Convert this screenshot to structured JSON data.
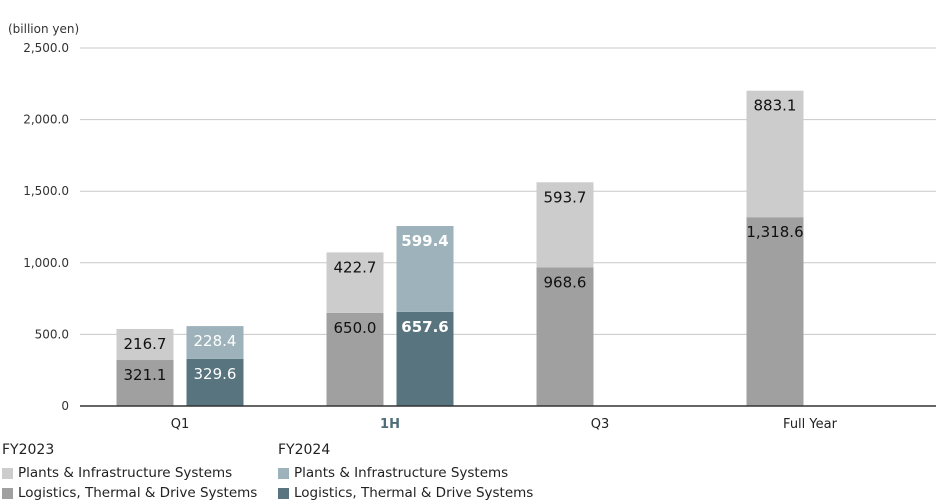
{
  "chart_data": {
    "type": "bar",
    "stacked": true,
    "unit_label": "(billion yen)",
    "categories": [
      "Q1",
      "1H",
      "Q3",
      "Full Year"
    ],
    "highlighted_category": "1H",
    "ylim": [
      0,
      2500
    ],
    "y_ticks": [
      "2,500.0",
      "2,000.0",
      "1,500.0",
      "1,000.0",
      "500.0",
      "0"
    ],
    "y_tick_values": [
      2500,
      2000,
      1500,
      1000,
      500,
      0
    ],
    "groups": [
      {
        "name": "FY2023",
        "series": [
          {
            "name": "Logistics, Thermal & Drive Systems",
            "color": "#a0a0a0",
            "values": [
              321.1,
              650.0,
              968.6,
              1318.6
            ],
            "labels": [
              "321.1",
              "650.0",
              "968.6",
              "1,318.6"
            ]
          },
          {
            "name": "Plants & Infrastructure Systems",
            "color": "#cccccc",
            "values": [
              216.7,
              422.7,
              593.7,
              883.1
            ],
            "labels": [
              "216.7",
              "422.7",
              "593.7",
              "883.1"
            ]
          }
        ]
      },
      {
        "name": "FY2024",
        "series": [
          {
            "name": "Logistics, Thermal & Drive Systems",
            "color": "#57747f",
            "values": [
              329.6,
              657.6,
              null,
              null
            ],
            "labels": [
              "329.6",
              "657.6",
              "",
              ""
            ]
          },
          {
            "name": "Plants & Infrastructure Systems",
            "color": "#9db2ba",
            "values": [
              228.4,
              599.4,
              null,
              null
            ],
            "labels": [
              "228.4",
              "599.4",
              "",
              ""
            ]
          }
        ]
      }
    ],
    "grid": true,
    "legend_position": "bottom-left"
  },
  "legend": {
    "fy2023": {
      "title": "FY2023",
      "items": [
        {
          "label": "Plants & Infrastructure Systems",
          "color": "#cccccc"
        },
        {
          "label": "Logistics, Thermal & Drive Systems",
          "color": "#a0a0a0"
        }
      ]
    },
    "fy2024": {
      "title": "FY2024",
      "items": [
        {
          "label": "Plants & Infrastructure Systems",
          "color": "#9db2ba"
        },
        {
          "label": "Logistics, Thermal & Drive Systems",
          "color": "#57747f"
        }
      ]
    }
  }
}
